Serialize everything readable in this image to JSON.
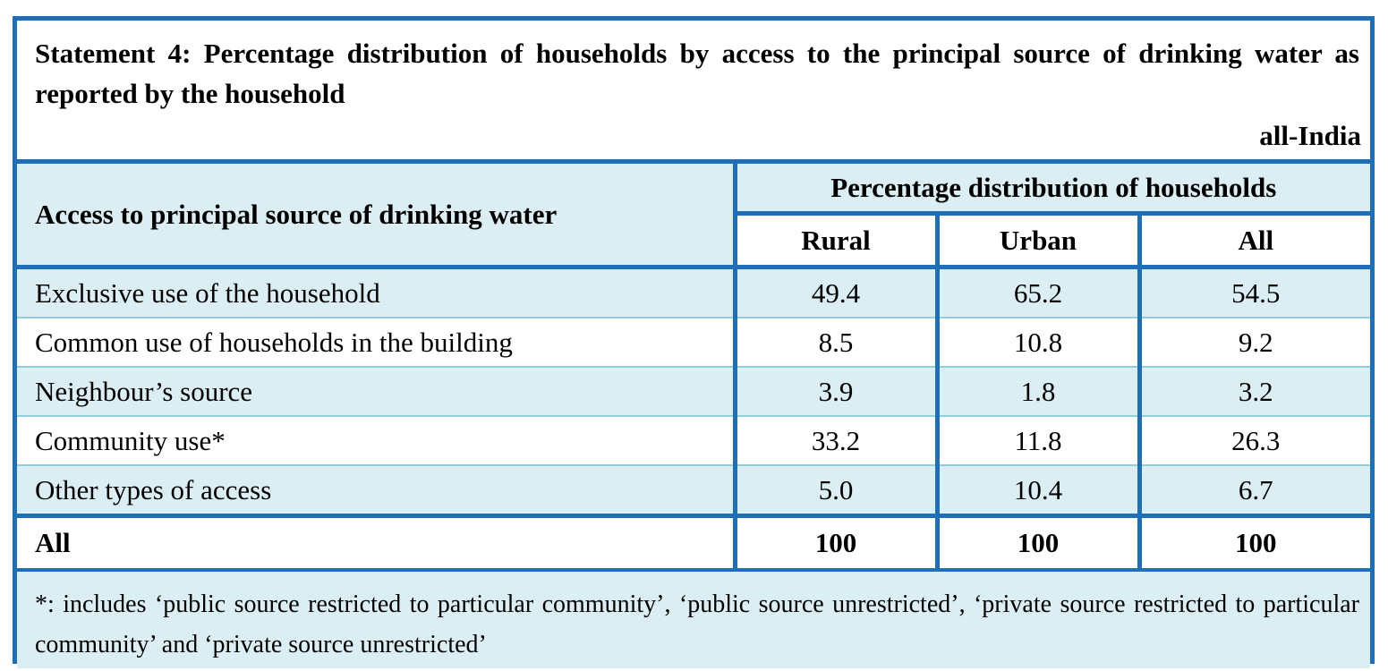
{
  "title": "Statement 4: Percentage distribution of households by access to the principal source of drinking water as reported by the household",
  "region": "all-India",
  "header": {
    "row_label": "Access to principal source of drinking water",
    "group_label": "Percentage distribution of households",
    "columns": [
      "Rural",
      "Urban",
      "All"
    ]
  },
  "rows": [
    {
      "label": "Exclusive use of the household",
      "rural": "49.4",
      "urban": "65.2",
      "all": "54.5"
    },
    {
      "label": "Common use of households in the building",
      "rural": "8.5",
      "urban": "10.8",
      "all": "9.2"
    },
    {
      "label": "Neighbour’s source",
      "rural": "3.9",
      "urban": "1.8",
      "all": "3.2"
    },
    {
      "label": "Community use*",
      "rural": "33.2",
      "urban": "11.8",
      "all": "26.3"
    },
    {
      "label": "Other types of access",
      "rural": "5.0",
      "urban": "10.4",
      "all": "6.7"
    }
  ],
  "total": {
    "label": "All",
    "rural": "100",
    "urban": "100",
    "all": "100"
  },
  "footnote": "*: includes ‘public source restricted to particular community’, ‘public source unrestricted’, ‘private source restricted to particular community’ and ‘private source unrestricted’",
  "colors": {
    "border": "#1F6FB8",
    "shade": "#DAEEF3",
    "row_rule": "#92CDDC"
  }
}
